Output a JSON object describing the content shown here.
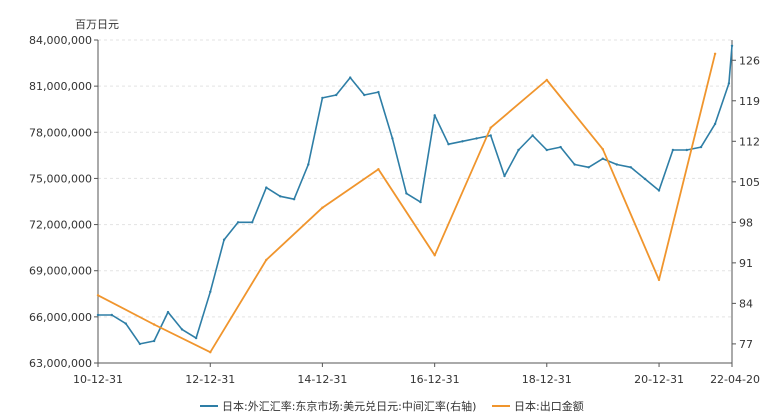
{
  "chart_data": {
    "type": "line",
    "y_left_unit": "百万日元",
    "y_left_ticks": [
      "63,000,000",
      "66,000,000",
      "69,000,000",
      "72,000,000",
      "75,000,000",
      "78,000,000",
      "81,000,000",
      "84,000,000"
    ],
    "y_left_tick_values": [
      63000000,
      66000000,
      69000000,
      72000000,
      75000000,
      78000000,
      81000000,
      84000000
    ],
    "ylim_left": [
      63000000,
      84000000
    ],
    "y_right_ticks": [
      "77",
      "84",
      "91",
      "98",
      "105",
      "112",
      "119",
      "126"
    ],
    "y_right_tick_values": [
      77,
      84,
      91,
      98,
      105,
      112,
      119,
      126
    ],
    "ylim_right": [
      73.7,
      129.5
    ],
    "x_ticks": [
      "10-12-31",
      "12-12-31",
      "14-12-31",
      "16-12-31",
      "18-12-31",
      "20-12-31",
      "22-04-20"
    ],
    "x_tick_values": [
      "2010-12-31",
      "2012-12-31",
      "2014-12-31",
      "2016-12-31",
      "2018-12-31",
      "2020-12-31",
      "2022-04-20"
    ],
    "xlim": [
      "2010-12-31",
      "2022-04-20"
    ],
    "grid": true,
    "legend_position": "bottom",
    "series": [
      {
        "name": "日本:外汇汇率:东京市场:美元兑日元:中间汇率(右轴)",
        "axis": "right",
        "color": "#2e7ea6",
        "x": [
          "2010-12-31",
          "2011-03-31",
          "2011-06-30",
          "2011-09-30",
          "2011-12-31",
          "2012-03-31",
          "2012-06-30",
          "2012-09-30",
          "2012-12-31",
          "2013-03-31",
          "2013-06-30",
          "2013-09-30",
          "2013-12-31",
          "2014-03-31",
          "2014-06-30",
          "2014-09-30",
          "2014-12-31",
          "2015-03-31",
          "2015-06-30",
          "2015-09-30",
          "2015-12-31",
          "2016-03-31",
          "2016-06-30",
          "2016-09-30",
          "2016-12-31",
          "2017-03-31",
          "2017-06-30",
          "2017-09-30",
          "2017-12-31",
          "2018-03-31",
          "2018-06-30",
          "2018-09-30",
          "2018-12-31",
          "2019-03-31",
          "2019-06-30",
          "2019-09-30",
          "2019-12-31",
          "2020-03-31",
          "2020-06-30",
          "2020-09-30",
          "2020-12-31",
          "2021-03-31",
          "2021-06-30",
          "2021-09-30",
          "2021-12-31",
          "2022-03-31",
          "2022-04-20"
        ],
        "values": [
          82,
          82,
          80.5,
          77,
          77.5,
          82.5,
          79.5,
          78,
          86,
          95,
          98,
          98,
          104,
          102.5,
          102,
          108,
          119.5,
          120,
          123,
          120,
          120.5,
          112.5,
          103,
          101.5,
          116.5,
          111.5,
          112,
          112.5,
          113,
          106,
          110.5,
          113,
          110.5,
          111,
          108,
          107.5,
          109,
          108,
          107.5,
          105.5,
          103.5,
          110.5,
          110.5,
          111,
          115,
          122,
          128.5
        ]
      },
      {
        "name": "日本:出口金额",
        "axis": "left",
        "color": "#f0952d",
        "x": [
          "2010-12-31",
          "2011-12-31",
          "2012-12-31",
          "2013-12-31",
          "2014-12-31",
          "2015-12-31",
          "2016-12-31",
          "2017-12-31",
          "2018-12-31",
          "2019-12-31",
          "2020-12-31",
          "2021-12-31"
        ],
        "values": [
          67400000,
          65500000,
          63700000,
          69700000,
          73100000,
          75600000,
          70000000,
          78300000,
          81400000,
          76900000,
          68400000,
          83100000
        ]
      }
    ]
  }
}
